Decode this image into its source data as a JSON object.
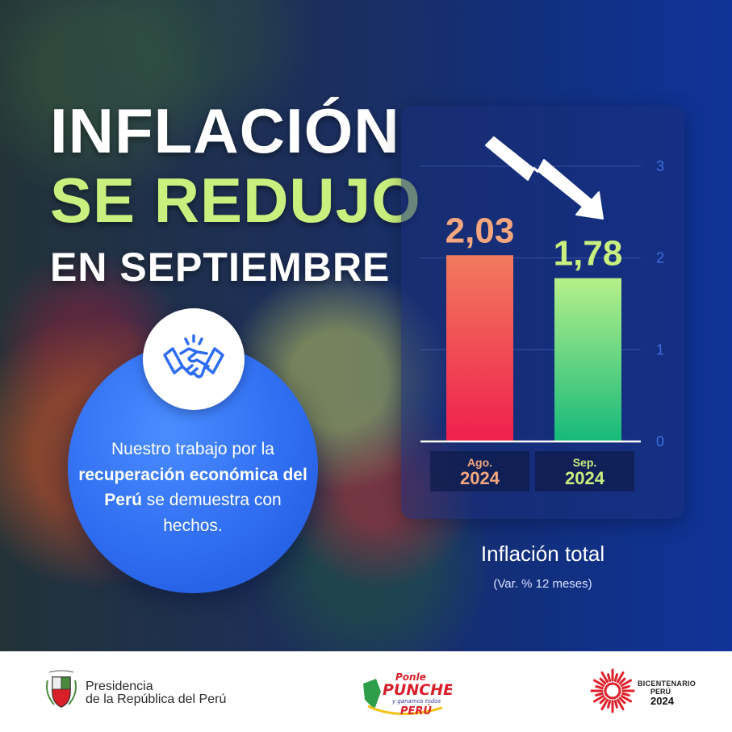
{
  "headline": {
    "line1": "INFLACIÓN",
    "line2": "SE REDUJO",
    "line3": "EN SEPTIEMBRE"
  },
  "message": {
    "part1": "Nuestro trabajo por la ",
    "bold": "recuperación económica del Perú",
    "part2": " se demuestra con hechos."
  },
  "chart_data": {
    "type": "bar",
    "categories": [
      {
        "month": "Ago.",
        "year": "2024"
      },
      {
        "month": "Sep.",
        "year": "2024"
      }
    ],
    "values": [
      2.03,
      1.78
    ],
    "value_labels": [
      "2,03",
      "1,78"
    ],
    "title": "Inflación total",
    "subtitle": "(Var. % 12 meses)",
    "ylim": [
      0,
      3
    ],
    "yticks": [
      "0",
      "1",
      "2",
      "3"
    ],
    "ytick_values": [
      0,
      1,
      2,
      3
    ],
    "grid": true,
    "bar_colors": [
      {
        "top": "#f27a5e",
        "bottom": "#f01f4d"
      },
      {
        "top": "#b6f08a",
        "bottom": "#15b97b"
      }
    ],
    "label_colors": [
      "#f4a77f",
      "#c9f07e"
    ]
  },
  "footer": {
    "presidencia_line1": "Presidencia",
    "presidencia_line2": "de la República del Perú",
    "ponle_logo_text": [
      "Ponle",
      "PUNCHE",
      "y ganamos todos",
      "PERÚ"
    ],
    "bicentenario_line1": "BICENTENARIO",
    "bicentenario_line2": "PERÚ",
    "bicentenario_line3": "2024"
  },
  "colors": {
    "accent_green": "#c9f07e",
    "accent_orange": "#f4a77f",
    "circle_blue": "#2f6df1"
  }
}
